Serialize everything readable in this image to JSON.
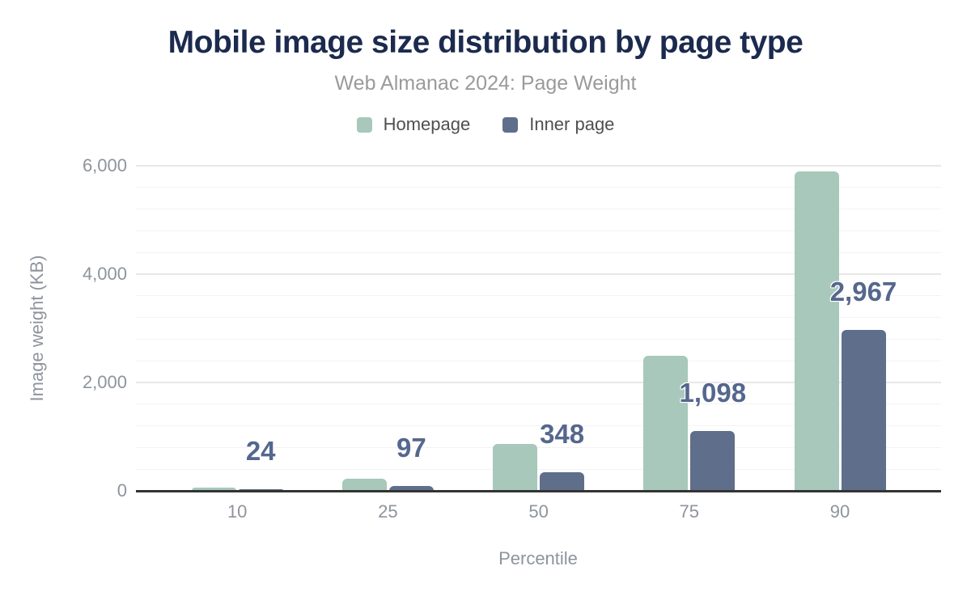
{
  "colors": {
    "title": "#1b2a4e",
    "subtitle": "#9a9a9a",
    "homepage": "#a7c8ba",
    "inner_page": "#5f6e8a",
    "data_label": "#55678d",
    "tick_label": "#8e949d",
    "legend_text": "#4f4f4f",
    "axis_line": "#333333",
    "grid_major": "#e7e7e7",
    "grid_minor": "#f3f3f3"
  },
  "chart_data": {
    "type": "bar",
    "title": "Mobile image size distribution by page type",
    "subtitle": "Web Almanac 2024: Page Weight",
    "xlabel": "Percentile",
    "ylabel": "Image weight (KB)",
    "categories": [
      "10",
      "25",
      "50",
      "75",
      "90"
    ],
    "series": [
      {
        "name": "Homepage",
        "color_key": "homepage",
        "values": [
          55,
          230,
          870,
          2490,
          5900
        ],
        "values_estimated_from_bar_heights": true,
        "data_labels_shown": false
      },
      {
        "name": "Inner page",
        "color_key": "inner_page",
        "values": [
          24,
          97,
          348,
          1098,
          2967
        ],
        "data_labels_shown": true,
        "data_labels": [
          "24",
          "97",
          "348",
          "1,098",
          "2,967"
        ]
      }
    ],
    "ylim": [
      0,
      6000
    ],
    "y_major_ticks": [
      0,
      2000,
      4000,
      6000
    ],
    "y_tick_labels": [
      "0",
      "2,000",
      "4,000",
      "6,000"
    ],
    "y_minor_step": 400,
    "grid": "horizontal-only",
    "legend_position": "top-center"
  }
}
